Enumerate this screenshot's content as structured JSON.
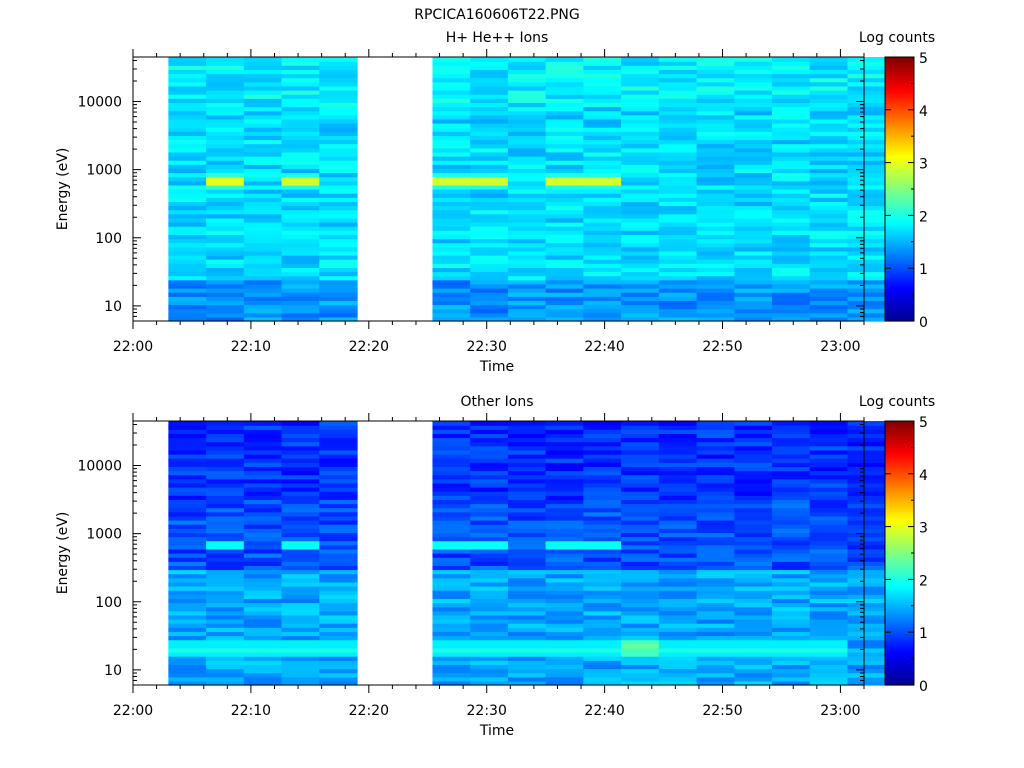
{
  "figure": {
    "title": "RPCICA160606T22.PNG"
  },
  "colorscale": [
    "#00008f",
    "#0000ff",
    "#0080ff",
    "#00ffff",
    "#80ff80",
    "#ffff00",
    "#ff8000",
    "#ff0000",
    "#800000"
  ],
  "chart_data": [
    {
      "type": "heatmap",
      "title": "H+ He++ Ions",
      "xlabel": "Time",
      "ylabel": "Energy (eV)",
      "x_tick_labels": [
        "22:00",
        "22:10",
        "22:20",
        "22:30",
        "22:40",
        "22:50",
        "23:00"
      ],
      "y_tick_labels": [
        "10",
        "100",
        "1000",
        "10000"
      ],
      "y_scale": "log",
      "ylim": [
        6,
        45000
      ],
      "xlim": [
        "22:00",
        "23:02"
      ],
      "data_gap": [
        "22:22",
        "22:25"
      ],
      "colorbar": {
        "label": "Log counts",
        "range": [
          0,
          5
        ],
        "tick_labels": [
          "0",
          "1",
          "2",
          "3",
          "4",
          "5"
        ]
      },
      "dominant_level": 1.7,
      "notable_features": [
        {
          "time_start": "22:06",
          "time_end": "22:09",
          "energy_eV": 700,
          "log_counts": 3.0
        },
        {
          "time_start": "22:13",
          "time_end": "22:16",
          "energy_eV": 700,
          "log_counts": 2.9
        },
        {
          "time_start": "22:25",
          "time_end": "22:32",
          "energy_eV": 700,
          "log_counts": 2.9
        },
        {
          "time_start": "22:35",
          "time_end": "22:41",
          "energy_eV": 700,
          "log_counts": 2.9
        }
      ]
    },
    {
      "type": "heatmap",
      "title": "Other Ions",
      "xlabel": "Time",
      "ylabel": "Energy (eV)",
      "x_tick_labels": [
        "22:00",
        "22:10",
        "22:20",
        "22:30",
        "22:40",
        "22:50",
        "23:00"
      ],
      "y_tick_labels": [
        "10",
        "100",
        "1000",
        "10000"
      ],
      "y_scale": "log",
      "ylim": [
        6,
        45000
      ],
      "xlim": [
        "22:00",
        "23:02"
      ],
      "data_gap": [
        "22:22",
        "22:25"
      ],
      "colorbar": {
        "label": "Log counts",
        "range": [
          0,
          5
        ],
        "tick_labels": [
          "0",
          "1",
          "2",
          "3",
          "4",
          "5"
        ]
      },
      "dominant_level": 1.0,
      "notable_features": [
        {
          "time_start": "22:06",
          "time_end": "22:09",
          "energy_eV": 700,
          "log_counts": 1.9
        },
        {
          "time_start": "22:13",
          "time_end": "22:16",
          "energy_eV": 700,
          "log_counts": 1.9
        },
        {
          "time_start": "22:25",
          "time_end": "22:32",
          "energy_eV": 700,
          "log_counts": 1.9
        },
        {
          "time_start": "22:35",
          "time_end": "22:41",
          "energy_eV": 700,
          "log_counts": 1.9
        },
        {
          "time_start": "22:00",
          "time_end": "23:01",
          "energy_eV": 20,
          "log_counts": 2.0
        },
        {
          "time_start": "22:42",
          "time_end": "22:44",
          "energy_eV": 22,
          "log_counts": 2.4
        }
      ]
    }
  ]
}
